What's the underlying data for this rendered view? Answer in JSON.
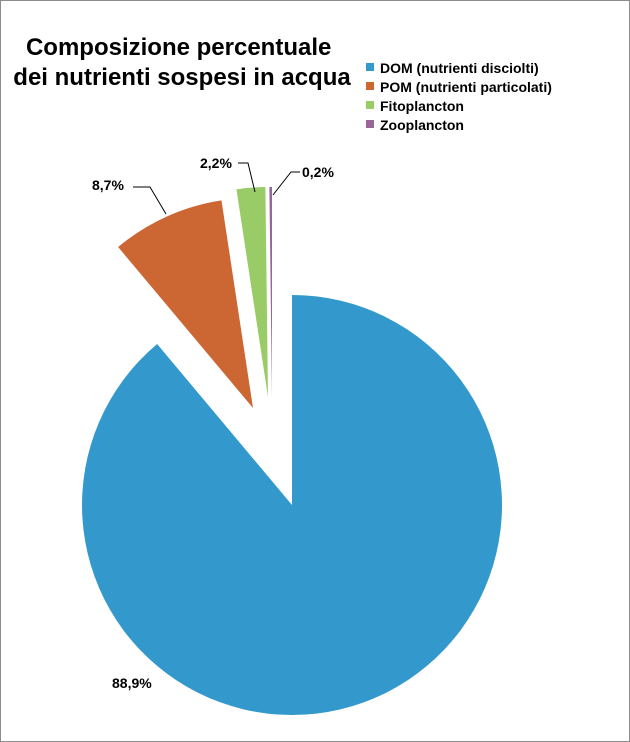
{
  "chart_data": {
    "type": "pie",
    "title": [
      "Composizione percentuale",
      "dei nutrienti sospesi in acqua"
    ],
    "legend_position": "right",
    "slices": [
      {
        "label": "DOM (nutrienti disciolti)",
        "value": 88.9,
        "value_label": "88,9%",
        "color": "#3399cc"
      },
      {
        "label": "POM (nutrienti particolati)",
        "value": 8.7,
        "value_label": "8,7%",
        "color": "#cc6633"
      },
      {
        "label": "Fitoplancton",
        "value": 2.2,
        "value_label": "2,2%",
        "color": "#99cc66"
      },
      {
        "label": "Zooplancton",
        "value": 0.2,
        "value_label": "0,2%",
        "color": "#996699"
      }
    ]
  }
}
